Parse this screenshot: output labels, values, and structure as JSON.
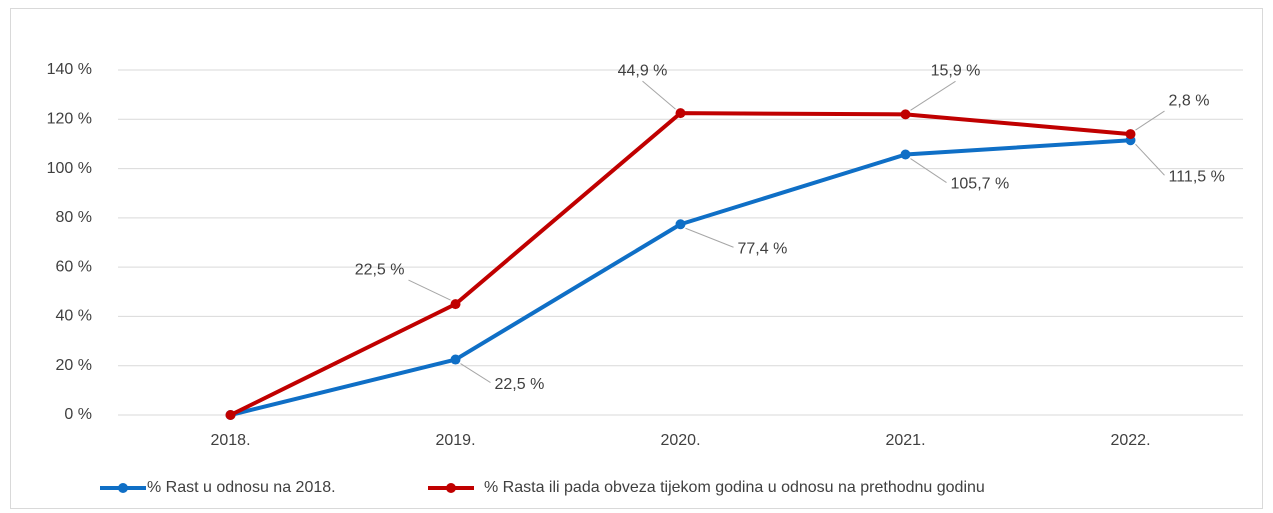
{
  "chart_data": {
    "type": "line",
    "categories": [
      "2018.",
      "2019.",
      "2020.",
      "2021.",
      "2022."
    ],
    "series": [
      {
        "name": "% Rast u odnosu na 2018.",
        "color": "#0f6fc6",
        "values": [
          0,
          22.5,
          77.4,
          105.7,
          111.5
        ],
        "value_labels": [
          null,
          "22,5 %",
          "77,4 %",
          "105,7 %",
          "111,5 %"
        ]
      },
      {
        "name": "% Rasta ili pada obveza tijekom godina u odnosu na prethodnu godinu",
        "color": "#c00000",
        "values": [
          0,
          45,
          122.5,
          122,
          114
        ],
        "annotations": [
          null,
          "22,5 %",
          "44,9 %",
          "15,9 %",
          "2,8 %"
        ]
      }
    ],
    "ylim": [
      0,
      140
    ],
    "yticks": [
      {
        "value": 0,
        "label": "0 %"
      },
      {
        "value": 20,
        "label": "20 %"
      },
      {
        "value": 40,
        "label": "40 %"
      },
      {
        "value": 60,
        "label": "60 %"
      },
      {
        "value": 80,
        "label": "80 %"
      },
      {
        "value": 100,
        "label": "100 %"
      },
      {
        "value": 120,
        "label": "120 %"
      },
      {
        "value": 140,
        "label": "140 %"
      }
    ],
    "grid": true,
    "legend": "bottom"
  }
}
